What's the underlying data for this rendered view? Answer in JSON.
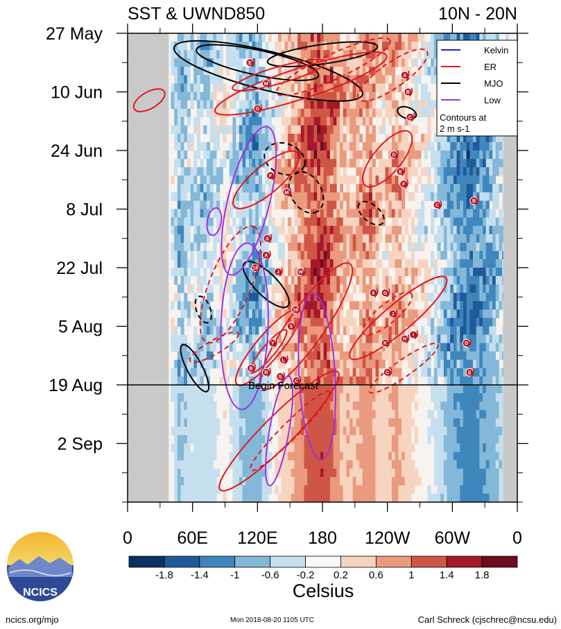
{
  "chart_data": {
    "type": "heatmap",
    "title_left": "SST & UWND850",
    "title_right": "10N - 20N",
    "x_ticks": [
      "0",
      "60E",
      "120E",
      "180",
      "120W",
      "60W",
      "0"
    ],
    "x_tick_lon": [
      0,
      60,
      120,
      180,
      240,
      300,
      360
    ],
    "y_ticks": [
      "27 May",
      "10 Jun",
      "24 Jun",
      "8 Jul",
      "22 Jul",
      "5 Aug",
      "19 Aug",
      "2 Sep"
    ],
    "y_tick_day": [
      0,
      14,
      28,
      42,
      56,
      70,
      84,
      98
    ],
    "day_range": [
      0,
      112
    ],
    "forecast_day": 84,
    "forecast_label": "Begin Forecast",
    "colorbar": {
      "unit": "Celsius",
      "labels": [
        "-1.8",
        "-1.4",
        "-1",
        "-0.6",
        "-0.2",
        "0.2",
        "0.6",
        "1",
        "1.4",
        "1.8"
      ],
      "colors": [
        "#0b3160",
        "#1f5a98",
        "#3f86bd",
        "#84b8d9",
        "#c6dfee",
        "#f8f8f8",
        "#f7d4c0",
        "#ea9a7e",
        "#cf5646",
        "#a5182a",
        "#6b0d1d"
      ]
    },
    "legend": {
      "items": [
        {
          "label": "Kelvin",
          "color": "#2222cc"
        },
        {
          "label": "ER",
          "color": "#e3161c"
        },
        {
          "label": "MJO",
          "color": "#000000"
        },
        {
          "label": "Low",
          "color": "#9a33e0"
        }
      ],
      "note_line1": "Contours at",
      "note_line2": "2 m s-1"
    },
    "storms": [
      {
        "letter": "E",
        "lon": 113,
        "day": 7
      },
      {
        "letter": "M",
        "lon": 128,
        "day": 12
      },
      {
        "letter": "G",
        "lon": 120,
        "day": 18
      },
      {
        "letter": "A",
        "lon": 256,
        "day": 10
      },
      {
        "letter": "B",
        "lon": 259,
        "day": 14
      },
      {
        "letter": "C",
        "lon": 261,
        "day": 20
      },
      {
        "letter": "D",
        "lon": 246,
        "day": 29
      },
      {
        "letter": "E",
        "lon": 252,
        "day": 33
      },
      {
        "letter": "F",
        "lon": 255,
        "day": 36
      },
      {
        "letter": "F",
        "lon": 132,
        "day": 34
      },
      {
        "letter": "M",
        "lon": 147,
        "day": 38
      },
      {
        "letter": "C",
        "lon": 286,
        "day": 41
      },
      {
        "letter": "B",
        "lon": 320,
        "day": 40
      },
      {
        "letter": "S",
        "lon": 129,
        "day": 49
      },
      {
        "letter": "A",
        "lon": 128,
        "day": 53
      },
      {
        "letter": "18",
        "lon": 118,
        "day": 56
      },
      {
        "letter": "J",
        "lon": 139,
        "day": 57
      },
      {
        "letter": "W",
        "lon": 160,
        "day": 57
      },
      {
        "letter": "9",
        "lon": 227,
        "day": 62
      },
      {
        "letter": "G",
        "lon": 238,
        "day": 62
      },
      {
        "letter": "J",
        "lon": 245,
        "day": 67
      },
      {
        "letter": "16",
        "lon": 155,
        "day": 66
      },
      {
        "letter": "S",
        "lon": 151,
        "day": 70
      },
      {
        "letter": "Y",
        "lon": 134,
        "day": 74
      },
      {
        "letter": "K",
        "lon": 238,
        "day": 74
      },
      {
        "letter": "H",
        "lon": 256,
        "day": 73
      },
      {
        "letter": "I",
        "lon": 264,
        "day": 72
      },
      {
        "letter": "D",
        "lon": 313,
        "day": 74
      },
      {
        "letter": "L",
        "lon": 144,
        "day": 78
      },
      {
        "letter": "B",
        "lon": 114,
        "day": 80
      },
      {
        "letter": "R",
        "lon": 128,
        "day": 81
      },
      {
        "letter": "S",
        "lon": 141,
        "day": 82
      },
      {
        "letter": "C",
        "lon": 156,
        "day": 83
      },
      {
        "letter": "E",
        "lon": 316,
        "day": 81
      },
      {
        "letter": "C",
        "lon": 240,
        "day": 81
      }
    ]
  },
  "branding": {
    "logo_text": "NCICS",
    "url": "ncics.org/mjo",
    "timestamp": "Mon 2018-08-20 1105 UTC",
    "author": "Carl Schreck (cjschrec@ncsu.edu)"
  }
}
